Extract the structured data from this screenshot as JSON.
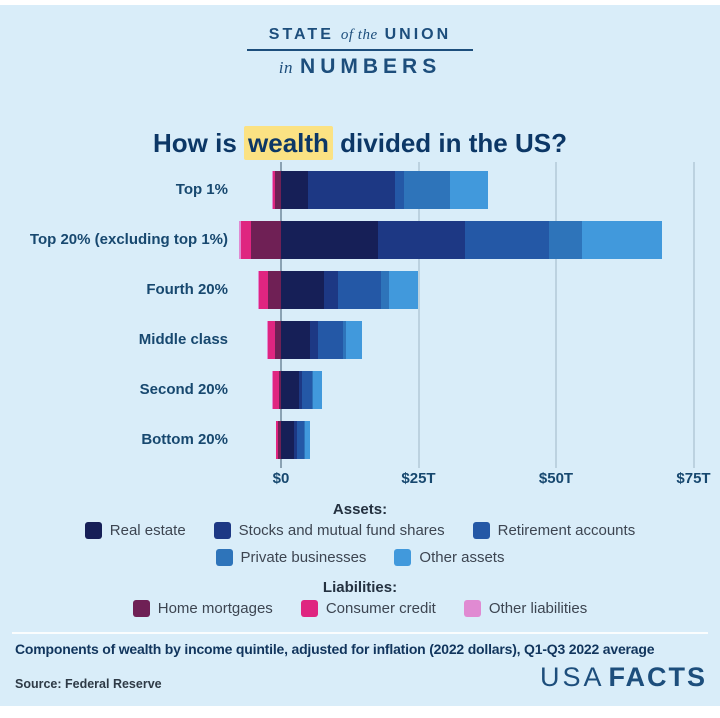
{
  "brand": {
    "line1_left": "STATE",
    "line1_mid": "of the",
    "line1_right": "UNION",
    "line2_prefix": "in",
    "line2_main": "NUMBERS"
  },
  "title": {
    "pre": "How is ",
    "highlight": "wealth",
    "post": " divided in the US?"
  },
  "chart_data": {
    "type": "bar",
    "orientation": "horizontal",
    "stacked": true,
    "title": "How is wealth divided in the US?",
    "unit": "trillions of 2022 dollars",
    "categories": [
      "Top 1%",
      "Top 20% (excluding top 1%)",
      "Fourth 20%",
      "Middle class",
      "Second 20%",
      "Bottom 20%"
    ],
    "x_ticks": [
      {
        "label": "$0",
        "value": 0
      },
      {
        "label": "$25T",
        "value": 25
      },
      {
        "label": "$50T",
        "value": 50
      },
      {
        "label": "$75T",
        "value": 75
      }
    ],
    "xlim": [
      -8,
      80
    ],
    "grid": true,
    "asset_series": [
      {
        "name": "Real estate",
        "color": "#161f57",
        "values": [
          5.0,
          17.6,
          7.8,
          5.3,
          3.3,
          2.4
        ]
      },
      {
        "name": "Stocks and mutual fund shares",
        "color": "#1d3884",
        "values": [
          15.8,
          15.8,
          2.5,
          1.5,
          0.6,
          0.5
        ]
      },
      {
        "name": "Retirement accounts",
        "color": "#2458a6",
        "values": [
          1.5,
          15.4,
          7.8,
          4.5,
          1.8,
          1.2
        ]
      },
      {
        "name": "Private businesses",
        "color": "#2e74ba",
        "values": [
          8.5,
          6.0,
          1.5,
          0.5,
          0.2,
          0.2
        ]
      },
      {
        "name": "Other assets",
        "color": "#4199dc",
        "values": [
          6.9,
          14.5,
          5.4,
          2.9,
          1.5,
          1.0
        ]
      }
    ],
    "liability_series": [
      {
        "name": "Home mortgages",
        "color": "#6f2055",
        "values": [
          1.1,
          5.4,
          2.4,
          1.1,
          0.4,
          0.5
        ]
      },
      {
        "name": "Consumer credit",
        "color": "#df2580",
        "values": [
          0.3,
          1.8,
          1.6,
          1.3,
          1.0,
          0.4
        ]
      },
      {
        "name": "Other liabilities",
        "color": "#e08ad2",
        "values": [
          0.3,
          0.4,
          0.2,
          0.2,
          0.15,
          0.1
        ]
      }
    ]
  },
  "legend": {
    "assets_header": "Assets:",
    "liabilities_header": "Liabilities:"
  },
  "footer": {
    "caption": "Components of wealth by income quintile, adjusted for inflation (2022 dollars), Q1-Q3 2022 average",
    "source": "Source: Federal Reserve",
    "brand_usa": "USA",
    "brand_facts": "FACTS"
  },
  "colors": {
    "background": "#d9edf9",
    "title_navy": "#0c3766",
    "label_navy": "#17486f",
    "brand_blue": "#1d4e7c",
    "highlight_yellow": "#fbe283",
    "gridline": "#bcd2e0",
    "zero_line": "#8aa2b3",
    "legend_text": "#3d4551"
  }
}
